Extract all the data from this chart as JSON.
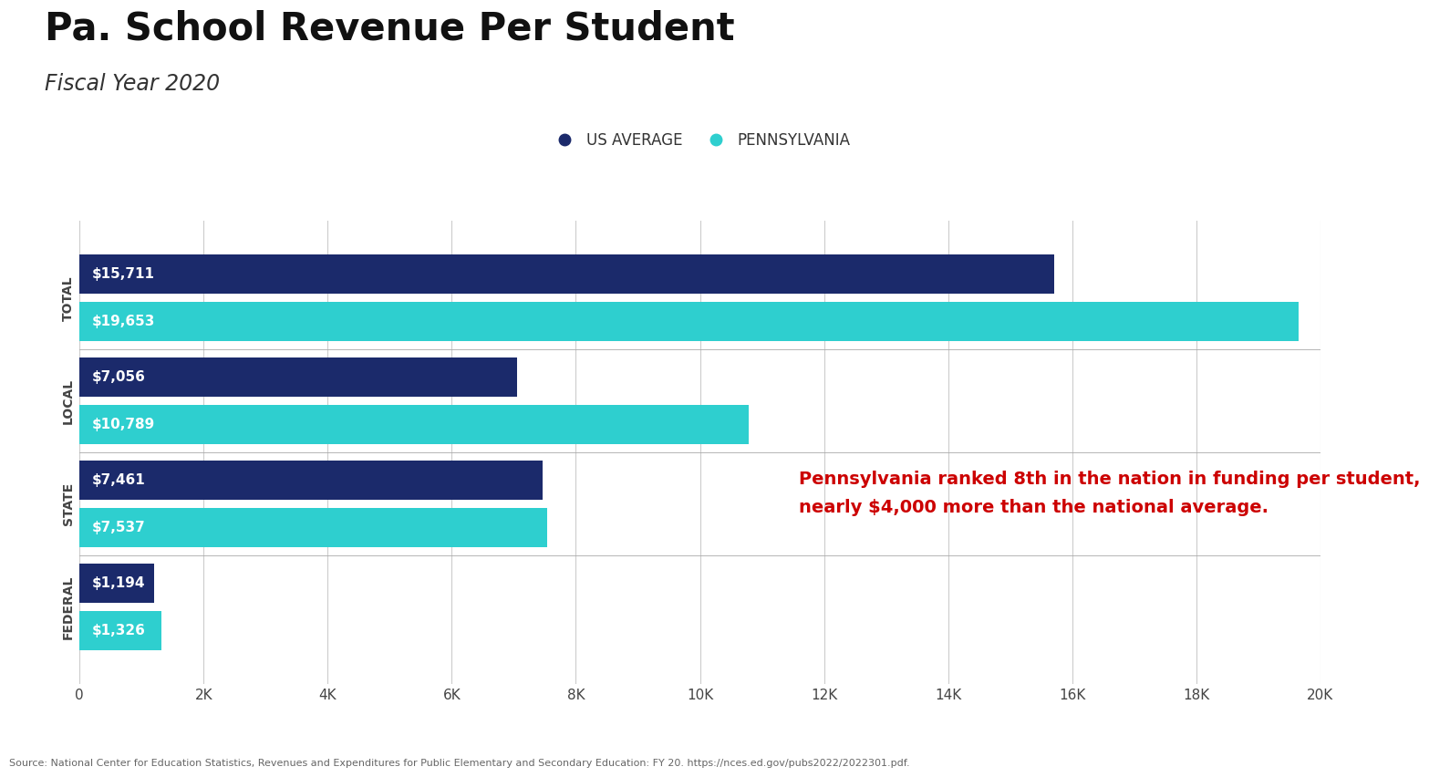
{
  "title": "Pa. School Revenue Per Student",
  "subtitle": "Fiscal Year 2020",
  "categories": [
    "TOTAL",
    "LOCAL",
    "STATE",
    "FEDERAL"
  ],
  "us_avg_values": [
    15711,
    7056,
    7461,
    1194
  ],
  "pa_values": [
    19653,
    10789,
    7537,
    1326
  ],
  "us_avg_labels": [
    "$15,711",
    "$7,056",
    "$7,461",
    "$1,194"
  ],
  "pa_labels": [
    "$19,653",
    "$10,789",
    "$7,537",
    "$1,326"
  ],
  "us_avg_color": "#1b2a6b",
  "pa_color": "#2ecfcf",
  "legend_us": "US AVERAGE",
  "legend_pa": "PENNSYLVANIA",
  "xlim": [
    0,
    20000
  ],
  "xticks": [
    0,
    2000,
    4000,
    6000,
    8000,
    10000,
    12000,
    14000,
    16000,
    18000,
    20000
  ],
  "xtick_labels": [
    "0",
    "2K",
    "4K",
    "6K",
    "8K",
    "10K",
    "12K",
    "14K",
    "16K",
    "18K",
    "20K"
  ],
  "annotation_line1": "Pennsylvania ranked 8th in the nation in funding per student,",
  "annotation_line2": "nearly $4,000 more than the national average.",
  "annotation_color": "#cc0000",
  "source_text": "Source: National Center for Education Statistics, Revenues and Expenditures for Public Elementary and Secondary Education: FY 20. https://nces.ed.gov/pubs2022/2022301.pdf.",
  "background_color": "#ffffff",
  "bar_height": 0.38,
  "title_fontsize": 30,
  "subtitle_fontsize": 17,
  "label_fontsize": 11,
  "tick_fontsize": 11,
  "legend_fontsize": 12,
  "source_fontsize": 8,
  "annotation_fontsize": 14,
  "cat_label_fontsize": 10
}
